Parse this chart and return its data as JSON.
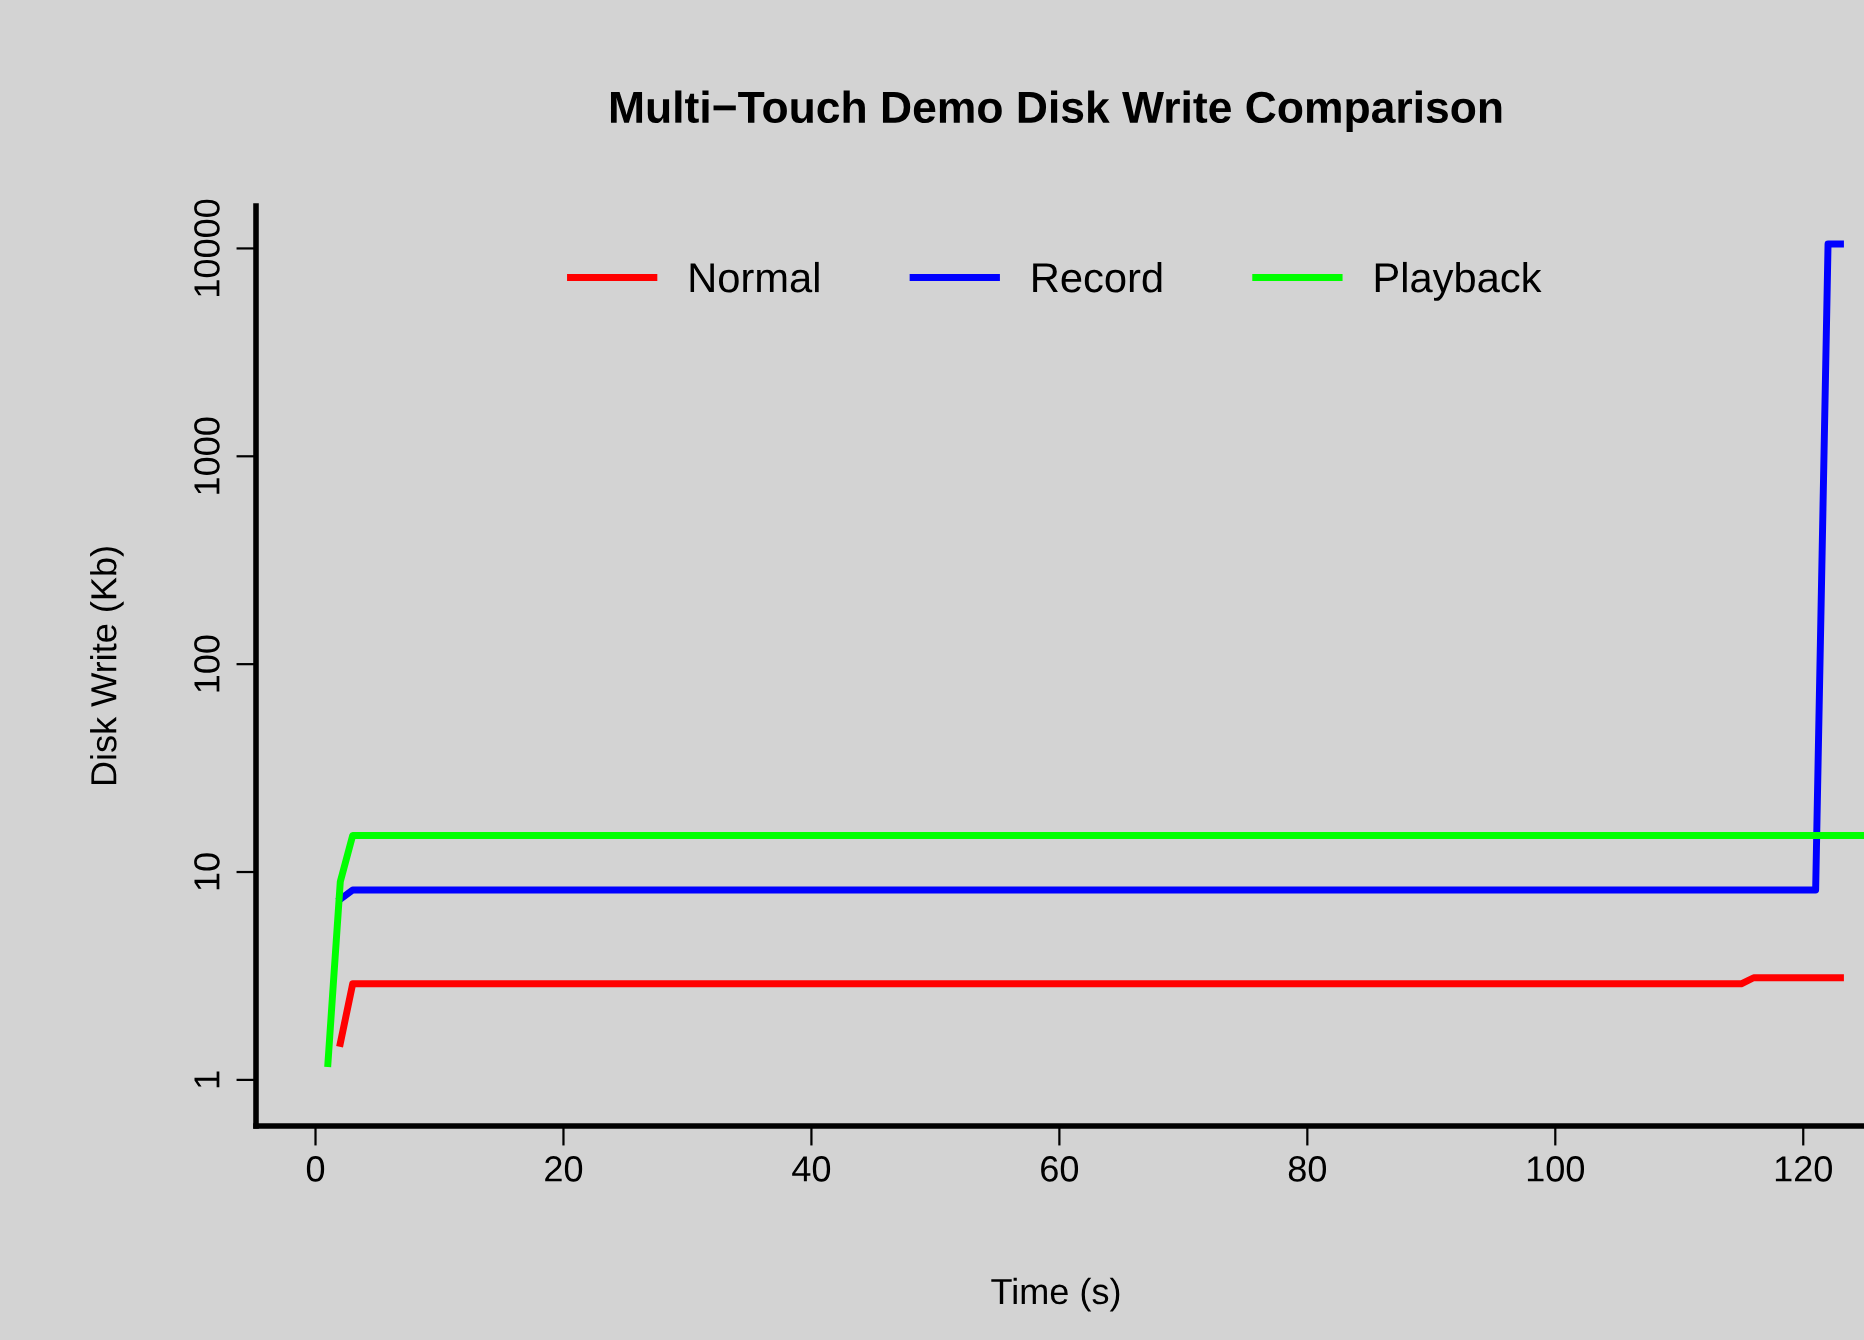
{
  "chart_data": {
    "type": "line",
    "title": "Multi−Touch Demo Disk Write Comparison",
    "xlabel": "Time (s)",
    "ylabel": "Disk Write (Kb)",
    "log": "y",
    "xlim": [
      -4.8,
      124.9
    ],
    "ylim": [
      0.6,
      16000
    ],
    "xticks": [
      0,
      20,
      40,
      60,
      80,
      100,
      120
    ],
    "yticks": [
      1,
      10,
      100,
      1000,
      10000
    ],
    "grid": false,
    "legend": "top",
    "marker": "none",
    "line_style": "solid",
    "series": [
      {
        "name": "Normal",
        "color": "#ff0000",
        "x": [
          2,
          3,
          115,
          116,
          123
        ],
        "values": [
          1.5,
          2.9,
          2.9,
          3.1,
          3.1
        ]
      },
      {
        "name": "Record",
        "color": "#0000ff",
        "x": [
          2,
          3,
          121,
          122,
          123
        ],
        "values": [
          7.4,
          8.2,
          8.2,
          10500,
          10500
        ]
      },
      {
        "name": "Playback",
        "color": "#00ff00",
        "x": [
          1,
          2,
          3,
          124.9
        ],
        "values": [
          1.2,
          9,
          15,
          15
        ]
      }
    ]
  }
}
